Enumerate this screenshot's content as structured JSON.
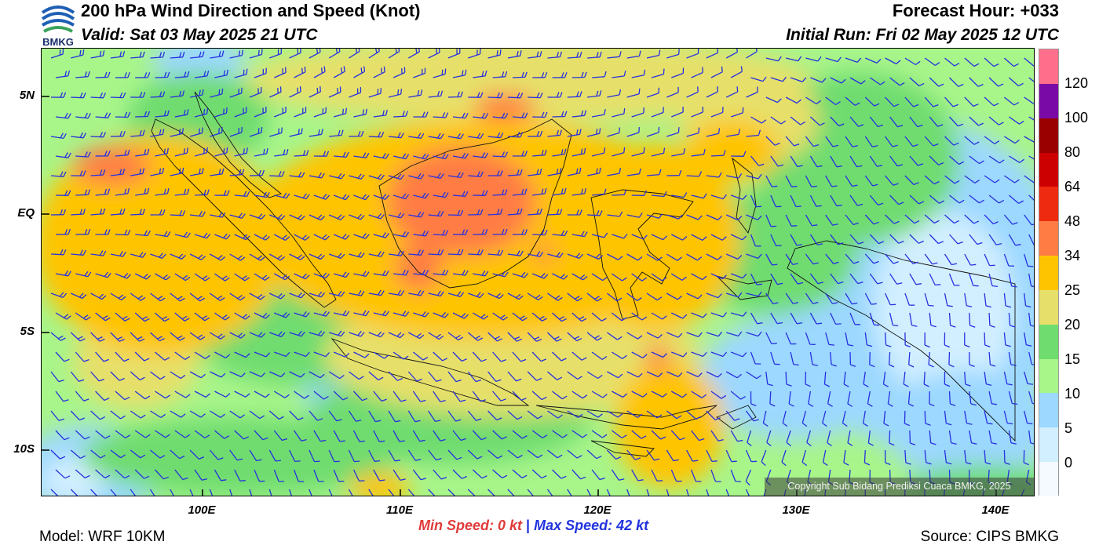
{
  "header": {
    "title": "200 hPa Wind Direction and Speed (Knot)",
    "valid": "Valid: Sat 03 May 2025 21 UTC",
    "forecast_hour": "Forecast Hour: +033",
    "initial_run": "Initial Run: Fri 02 May 2025 12 UTC",
    "logo_text": "BMKG"
  },
  "map": {
    "lat_labels": [
      "5N",
      "EQ",
      "5S",
      "10S"
    ],
    "lon_labels": [
      "100E",
      "110E",
      "120E",
      "130E",
      "140E"
    ],
    "barb_color": "#2630e0",
    "coastline_color": "#111111"
  },
  "colorbar": {
    "labels": [
      "120",
      "100",
      "80",
      "64",
      "48",
      "34",
      "25",
      "20",
      "15",
      "10",
      "5",
      "0"
    ],
    "colors": [
      "#ff6e8a",
      "#7a0aa6",
      "#9b0000",
      "#cc0000",
      "#ee2a10",
      "#ff7d45",
      "#ffc400",
      "#e6e06a",
      "#6fdc6f",
      "#a8f58a",
      "#9cd8ff",
      "#d2efff",
      "#f4faff"
    ]
  },
  "footer": {
    "min_speed": "Min Speed:   0 kt",
    "separator": "|",
    "max_speed": "Max Speed:  42 kt",
    "model": "Model: WRF 10KM",
    "source": "Source: CIPS BMKG",
    "copyright": "Copyright Sub Bidang Prediksi Cuaca BMKG, 2025"
  }
}
